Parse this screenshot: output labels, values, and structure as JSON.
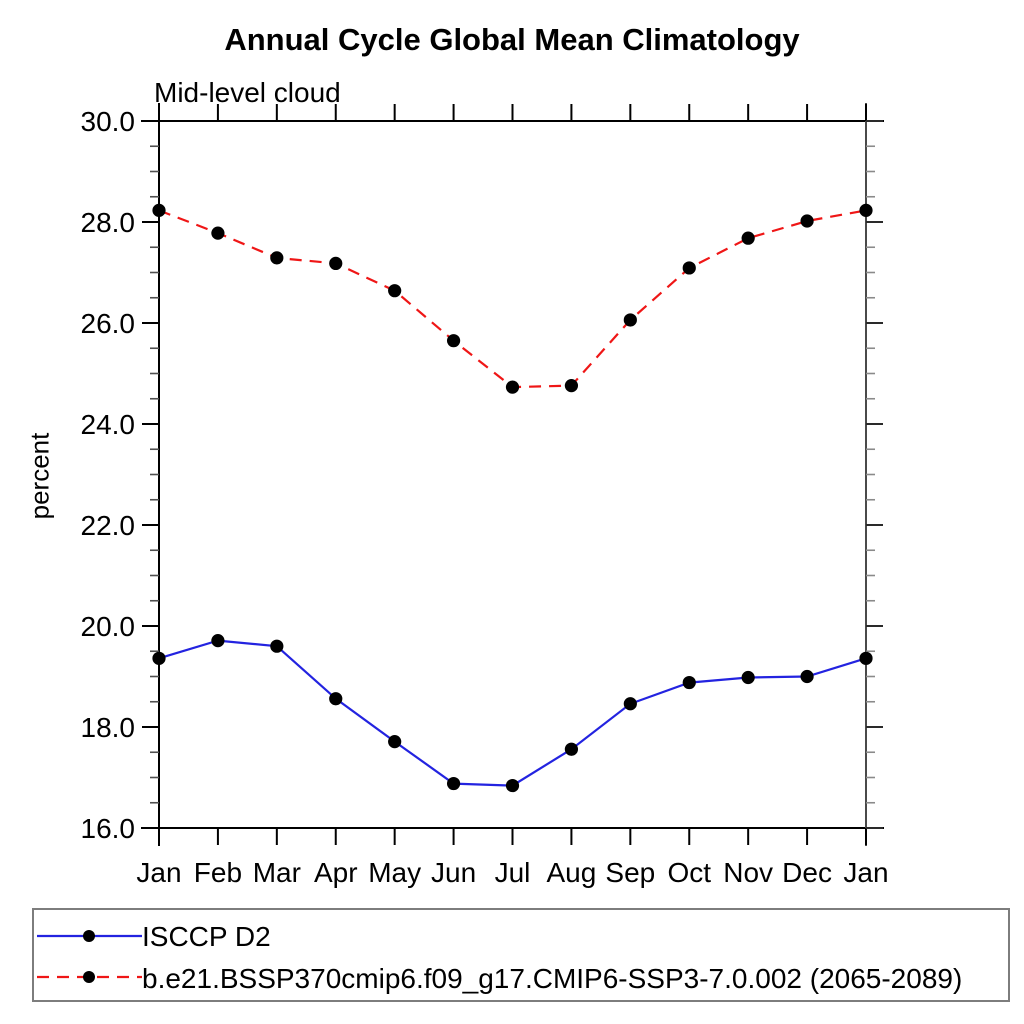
{
  "chart_data": {
    "type": "line",
    "title": "Annual Cycle Global Mean Climatology",
    "subtitle": "Mid-level cloud",
    "ylabel": "percent",
    "xlabel": "",
    "categories": [
      "Jan",
      "Feb",
      "Mar",
      "Apr",
      "May",
      "Jun",
      "Jul",
      "Aug",
      "Sep",
      "Oct",
      "Nov",
      "Dec",
      "Jan"
    ],
    "ylim": [
      16.0,
      30.0
    ],
    "ytick_major_step": 2.0,
    "ytick_minor_step": 0.5,
    "ytick_labels": [
      "16.0",
      "18.0",
      "20.0",
      "22.0",
      "24.0",
      "26.0",
      "28.0",
      "30.0"
    ],
    "grid": false,
    "legend_position": "bottom-left-box",
    "marker": "filled-circle",
    "marker_color": "#000000",
    "series": [
      {
        "name": "ISCCP D2",
        "color": "#2323e0",
        "line_style": "solid",
        "values": [
          19.36,
          19.71,
          19.6,
          18.56,
          17.71,
          16.88,
          16.84,
          17.56,
          18.46,
          18.88,
          18.98,
          19.0,
          19.36
        ]
      },
      {
        "name": "b.e21.BSSP370cmip6.f09_g17.CMIP6-SSP3-7.0.002 (2065-2089)",
        "color": "#ef1616",
        "line_style": "dashed",
        "values": [
          28.23,
          27.78,
          27.29,
          27.18,
          26.64,
          25.65,
          24.73,
          24.76,
          26.06,
          27.09,
          27.68,
          28.02,
          28.23
        ]
      }
    ]
  }
}
